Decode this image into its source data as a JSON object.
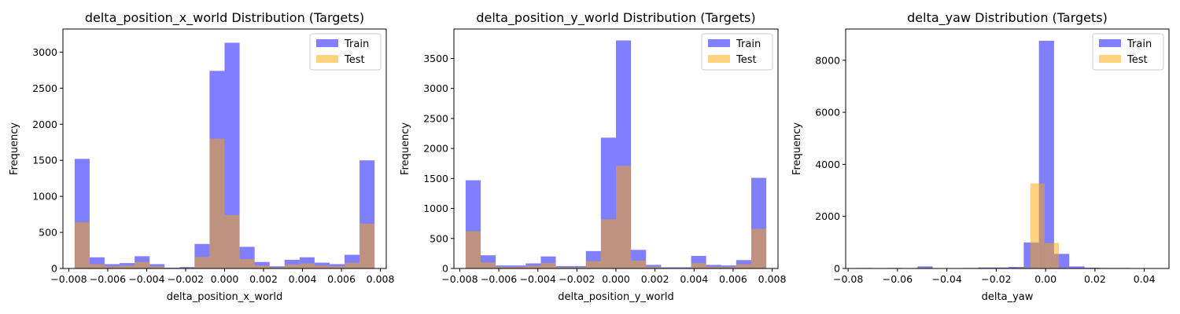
{
  "chart_data": [
    {
      "type": "histogram",
      "title": "delta_position_x_world Distribution (Targets)",
      "xlabel": "delta_position_x_world",
      "ylabel": "Frequency",
      "xlim": [
        -0.0083,
        0.0083
      ],
      "ylim": [
        0,
        3320
      ],
      "xticks": [
        -0.008,
        -0.006,
        -0.004,
        -0.002,
        0.0,
        0.002,
        0.004,
        0.006,
        0.008
      ],
      "xtick_labels": [
        "−0.008",
        "−0.006",
        "−0.004",
        "−0.002",
        "0.000",
        "0.002",
        "0.004",
        "0.006",
        "0.008"
      ],
      "yticks": [
        0,
        500,
        1000,
        1500,
        2000,
        2500,
        3000
      ],
      "legend_position": "upper right",
      "series": [
        {
          "name": "Train",
          "color": "#0000ff",
          "opacity": 0.5,
          "bin_start": -0.0077,
          "bin_width": 0.00077,
          "values": [
            1520,
            155,
            60,
            75,
            170,
            60,
            10,
            20,
            340,
            2740,
            3130,
            300,
            90,
            30,
            120,
            155,
            80,
            60,
            190,
            1500
          ]
        },
        {
          "name": "Test",
          "color": "#ffa500",
          "opacity": 0.5,
          "bin_start": -0.0077,
          "bin_width": 0.00077,
          "values": [
            640,
            60,
            30,
            40,
            90,
            30,
            5,
            10,
            160,
            1800,
            740,
            130,
            40,
            15,
            55,
            70,
            40,
            30,
            80,
            620
          ]
        }
      ]
    },
    {
      "type": "histogram",
      "title": "delta_position_y_world Distribution (Targets)",
      "xlabel": "delta_position_y_world",
      "ylabel": "Frequency",
      "xlim": [
        -0.0083,
        0.0083
      ],
      "ylim": [
        0,
        3990
      ],
      "xticks": [
        -0.008,
        -0.006,
        -0.004,
        -0.002,
        0.0,
        0.002,
        0.004,
        0.006,
        0.008
      ],
      "xtick_labels": [
        "−0.008",
        "−0.006",
        "−0.004",
        "−0.002",
        "0.000",
        "0.002",
        "0.004",
        "0.006",
        "0.008"
      ],
      "yticks": [
        0,
        500,
        1000,
        1500,
        2000,
        2500,
        3000,
        3500
      ],
      "legend_position": "upper right",
      "series": [
        {
          "name": "Train",
          "color": "#0000ff",
          "opacity": 0.5,
          "bin_start": -0.0077,
          "bin_width": 0.00077,
          "values": [
            1470,
            220,
            50,
            50,
            85,
            200,
            40,
            40,
            290,
            2180,
            3800,
            310,
            60,
            20,
            20,
            210,
            60,
            50,
            140,
            1510
          ]
        },
        {
          "name": "Test",
          "color": "#ffa500",
          "opacity": 0.5,
          "bin_start": -0.0077,
          "bin_width": 0.00077,
          "values": [
            620,
            100,
            25,
            25,
            45,
            90,
            20,
            20,
            120,
            820,
            1710,
            130,
            30,
            10,
            10,
            90,
            30,
            25,
            70,
            660
          ]
        }
      ]
    },
    {
      "type": "histogram",
      "title": "delta_yaw Distribution (Targets)",
      "xlabel": "delta_yaw",
      "ylabel": "Frequency",
      "xlim": [
        -0.081,
        0.05
      ],
      "ylim": [
        0,
        9200
      ],
      "xticks": [
        -0.08,
        -0.06,
        -0.04,
        -0.02,
        0.0,
        0.02,
        0.04
      ],
      "xtick_labels": [
        "−0.08",
        "−0.06",
        "−0.04",
        "−0.02",
        "0.00",
        "0.02",
        "0.04"
      ],
      "yticks": [
        0,
        2000,
        4000,
        6000,
        8000
      ],
      "legend_position": "upper right",
      "series": [
        {
          "name": "Train",
          "color": "#0000ff",
          "opacity": 0.5,
          "bin_start": -0.0765,
          "bin_width": 0.00615,
          "values": [
            20,
            0,
            20,
            0,
            80,
            10,
            10,
            20,
            40,
            40,
            60,
            1000,
            8750,
            560,
            80,
            30,
            20,
            20,
            10,
            10
          ]
        },
        {
          "name": "Test",
          "color": "#ffa500",
          "opacity": 0.5,
          "bin_start": -0.07,
          "bin_width": 0.0058,
          "values": [
            10,
            10,
            0,
            30,
            10,
            10,
            10,
            20,
            20,
            20,
            40,
            3270,
            980,
            20,
            10,
            10,
            10,
            10,
            5,
            5
          ]
        }
      ]
    }
  ]
}
